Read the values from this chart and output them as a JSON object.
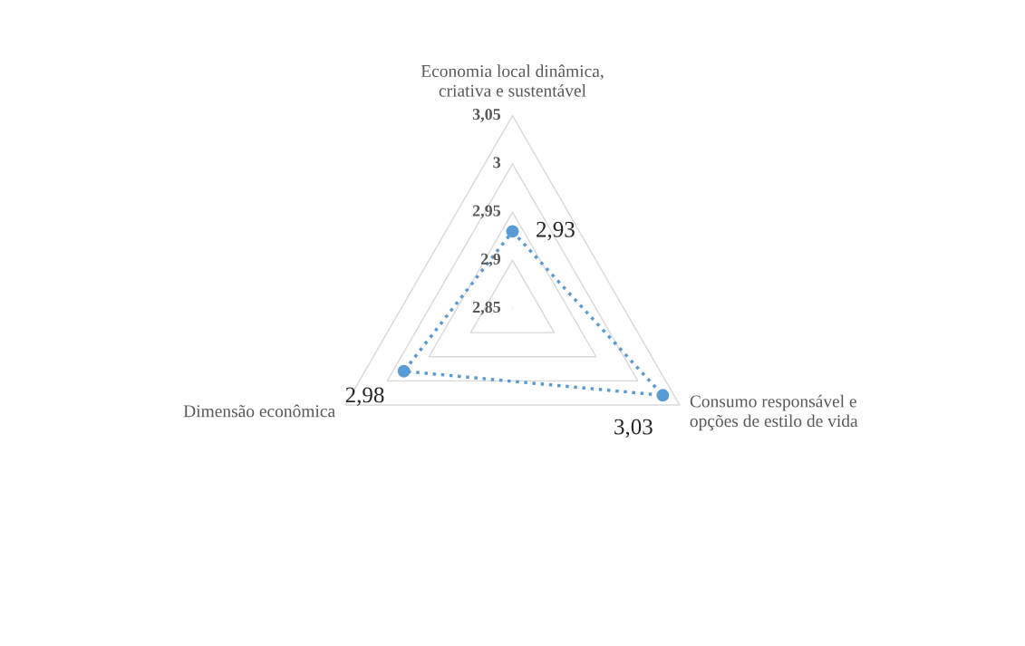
{
  "chart_data": {
    "type": "radar",
    "categories": [
      "Economia local dinâmica,\ncriativa e sustentável",
      "Consumo responsável e\nopções de estilo de vida",
      "Dimensão econômica"
    ],
    "series": [
      {
        "color": "#5b9bd5",
        "values": [
          2.93,
          3.03,
          2.98
        ],
        "value_labels": [
          "2,93",
          "3,03",
          "2,98"
        ]
      }
    ],
    "ylim": [
      2.85,
      3.05
    ],
    "yticks": [
      {
        "value": 2.85,
        "label": "2,85"
      },
      {
        "value": 2.9,
        "label": "2,9"
      },
      {
        "value": 2.95,
        "label": "2,95"
      },
      {
        "value": 3,
        "label": "3"
      },
      {
        "value": 3.05,
        "label": "3,05"
      }
    ],
    "grid": true,
    "marker": "circle",
    "line_style": "dotted"
  }
}
